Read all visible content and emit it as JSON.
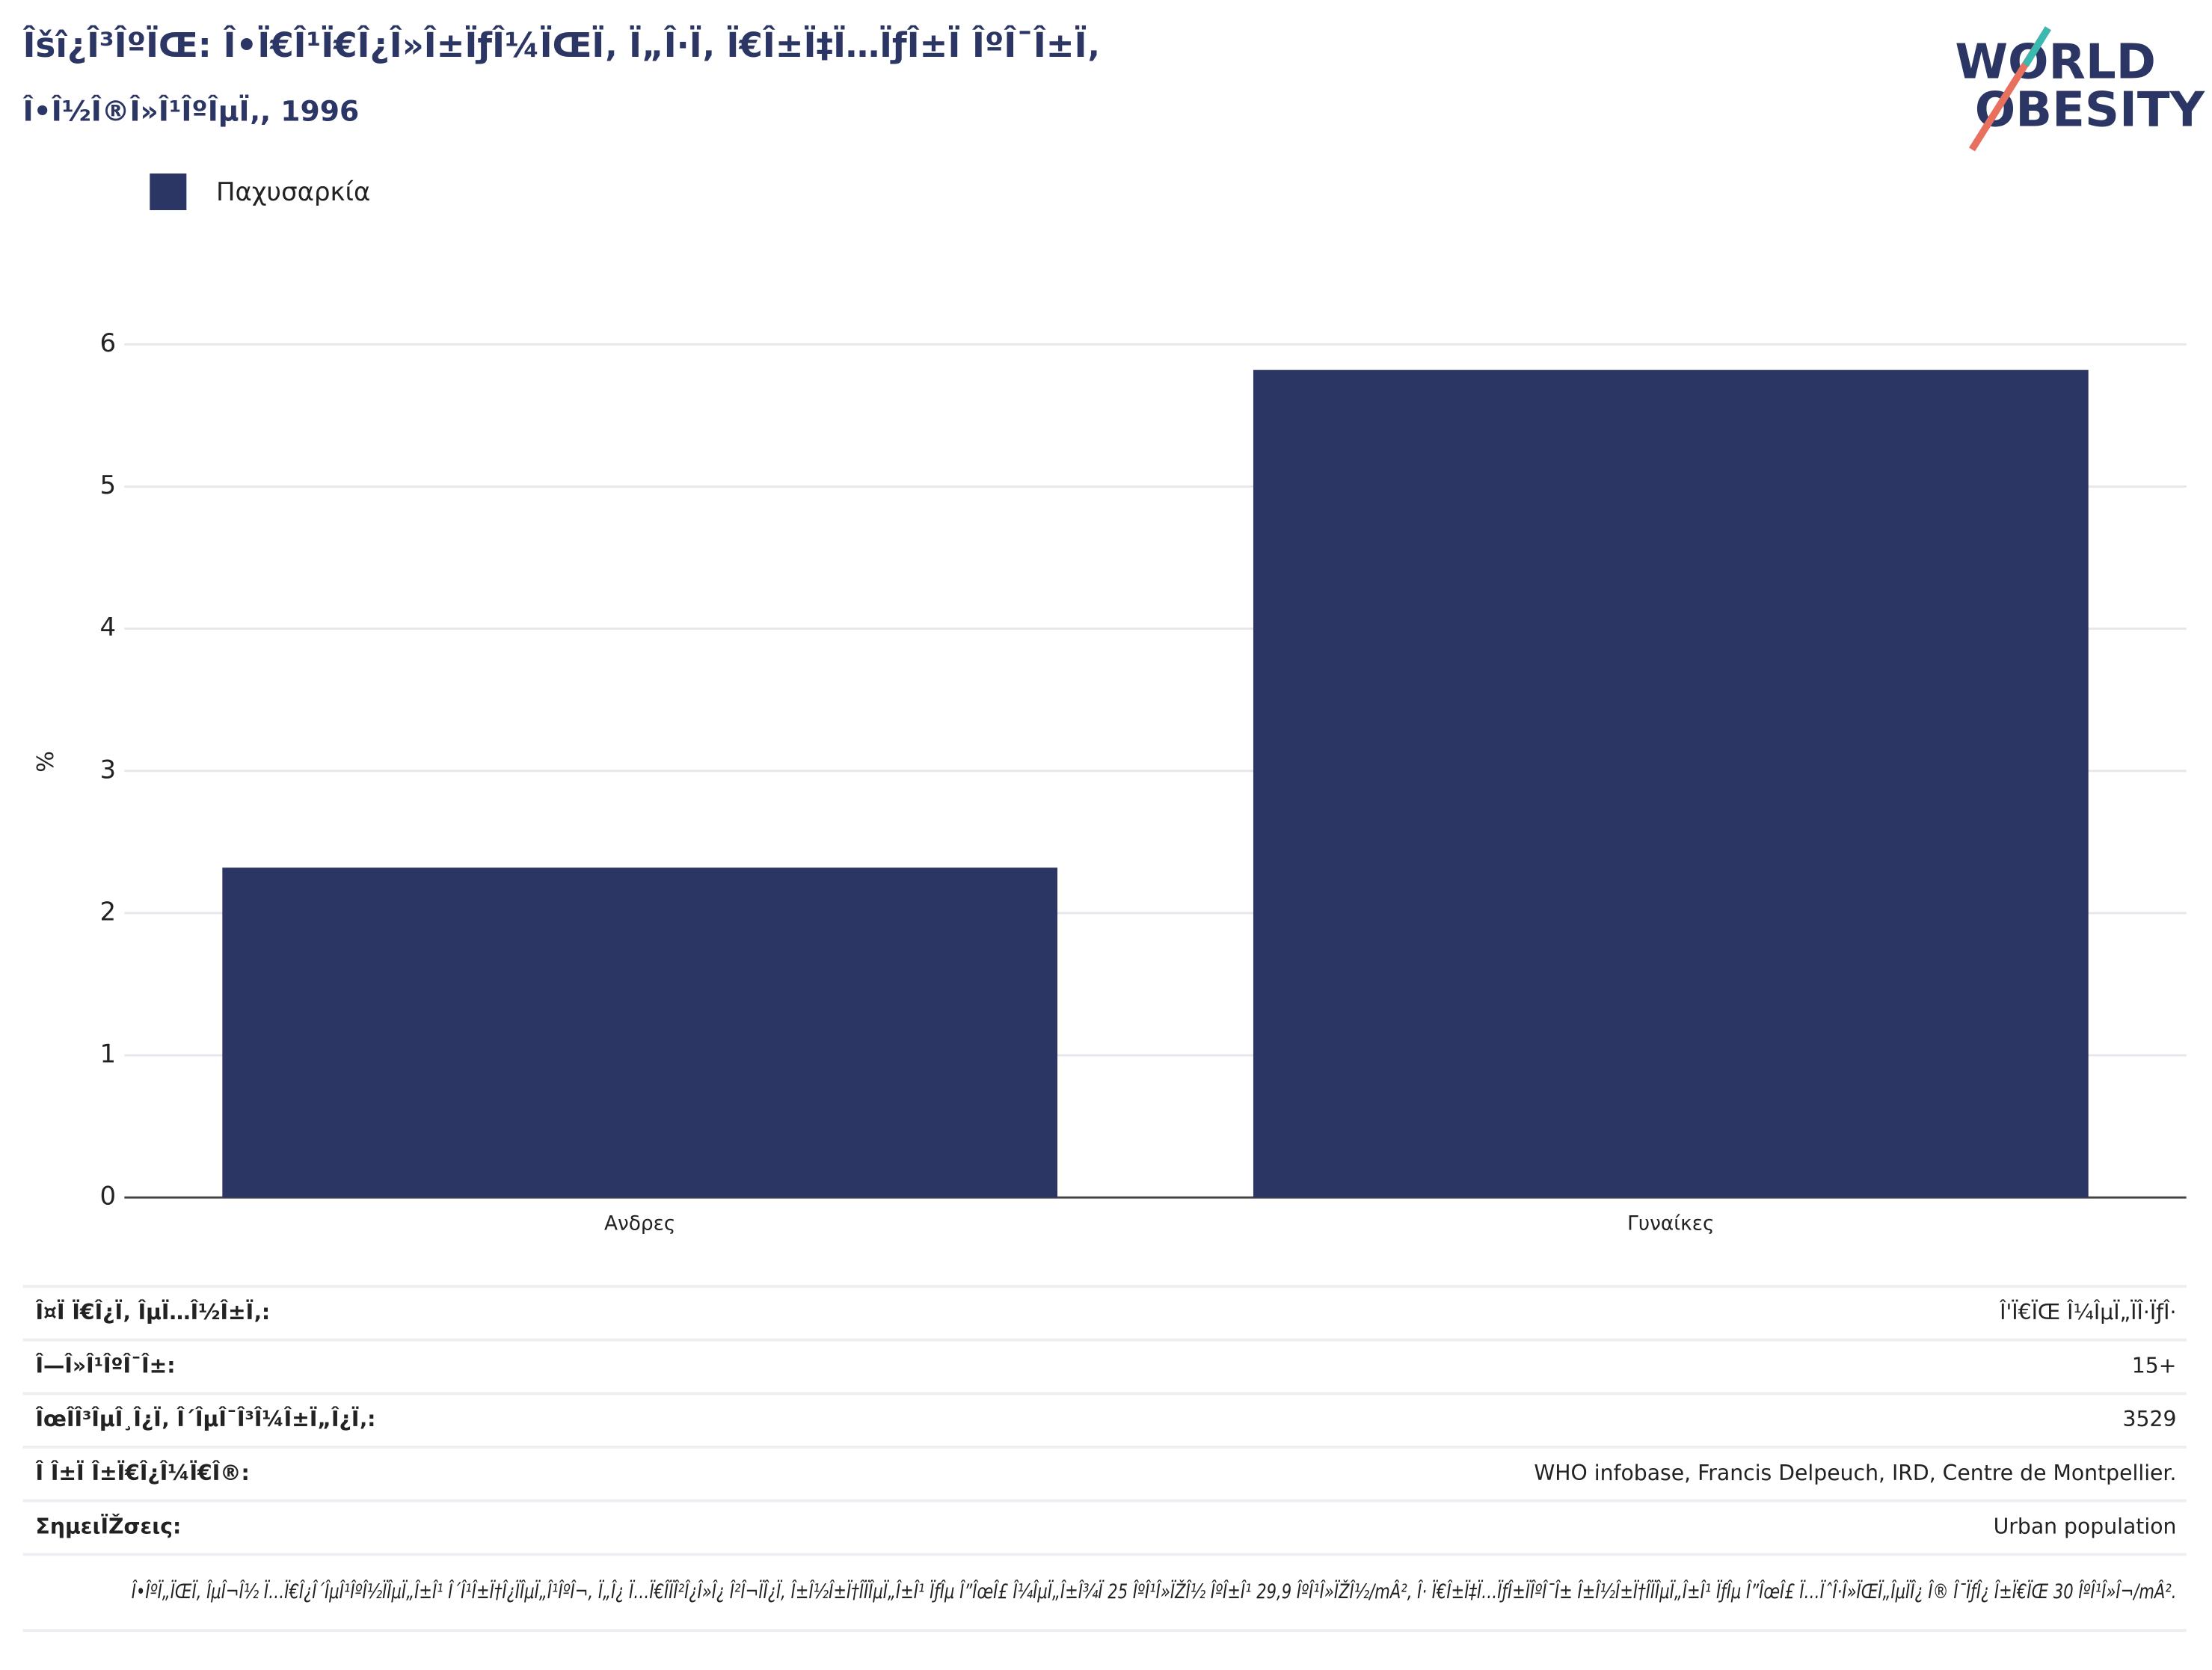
{
  "logo": [
    "WORLD",
    "OBESITY"
  ],
  "chart_data": {
    "type": "bar",
    "title": "Îšî¿Î³ÎºÏŒ: Î•Ï€Î¹Ï€Î¿Î»Î±ÏƒÎ¼ÏŒÏ‚ Ï„Î·Ï‚ Ï€Î±Ï‡Ï…ÏƒÎ±Ï ÎºÎ¯Î±Ï‚",
    "subtitle": "Î•Î½Î®Î»Î¹ÎºÎµÏ‚, 1996",
    "y_label": "%",
    "categories": [
      "Ανδρες",
      "Γυναίκες"
    ],
    "series": [
      {
        "name": "Παχυσαρκία",
        "color": "#2b3664",
        "values": [
          2.32,
          5.82
        ]
      }
    ],
    "ylim": [
      0,
      6.2
    ],
    "yticks": [
      0,
      1,
      2,
      3,
      4,
      5,
      6
    ],
    "grid": true
  },
  "table": {
    "rows": [
      [
        "Î¤Ï Ï€Î¿Ï‚ ÎµÏ…Î½Î±Ï‚:",
        "Î'Ï€ÏŒ Î¼ÎµÏ„ÏÎ·ÏƒÎ·"
      ],
      [
        "Î—Î»Î¹ÎºÎ¯Î±:",
        "15+"
      ],
      [
        "ÎœÎ­Î³ÎµÎ¸Î¿Ï‚ Î´ÎµÎ¯Î³Î¼Î±Ï„Î¿Ï‚:",
        "3529"
      ],
      [
        "Î Î±Ï Î±Ï€Î¿Î¼Ï€Î®:",
        "WHO infobase, Francis Delpeuch, IRD, Centre de Montpellier."
      ],
      [
        "ΣημειÏŽσεις:",
        "Urban population"
      ]
    ],
    "note": "Î•ÎºÏ„ÏŒÏ‚ ÎµÎ¬Î½ Ï…Ï€Î¿Î´ÎµÎ¹ÎºÎ½ÏÎµÏ„Î±Î¹ Î´Î¹Î±Ï†Î¿ÏÎµÏ„Î¹ÎºÎ¬, Ï„Î¿ Ï…Ï€Î­ÏÎ²Î¿Î»Î¿ Î²Î¬ÏÎ¿Ï‚ Î±Î½Î±Ï†Î­ÏÎµÏ„Î±Î¹ ÏƒÎµ Î”ÎœÎ£ Î¼ÎµÏ„Î±Î¾Ï 25 ÎºÎ¹Î»ÏŽÎ½ ÎºÎ±Î¹ 29,9 ÎºÎ¹Î»ÏŽÎ½/mÂ², Î· Ï€Î±Ï‡Ï…ÏƒÎ±ÏÎºÎ¯Î± Î±Î½Î±Ï†Î­ÏÎµÏ„Î±Î¹ ÏƒÎµ Î”ÎœÎ£ Ï…ÏˆÎ·Î»ÏŒÏ„ÎµÏÎ¿ Î® Î¯ÏƒÎ¿ Î±Ï€ÏŒ 30 ÎºÎ¹Î»Î¬/mÂ²."
  }
}
